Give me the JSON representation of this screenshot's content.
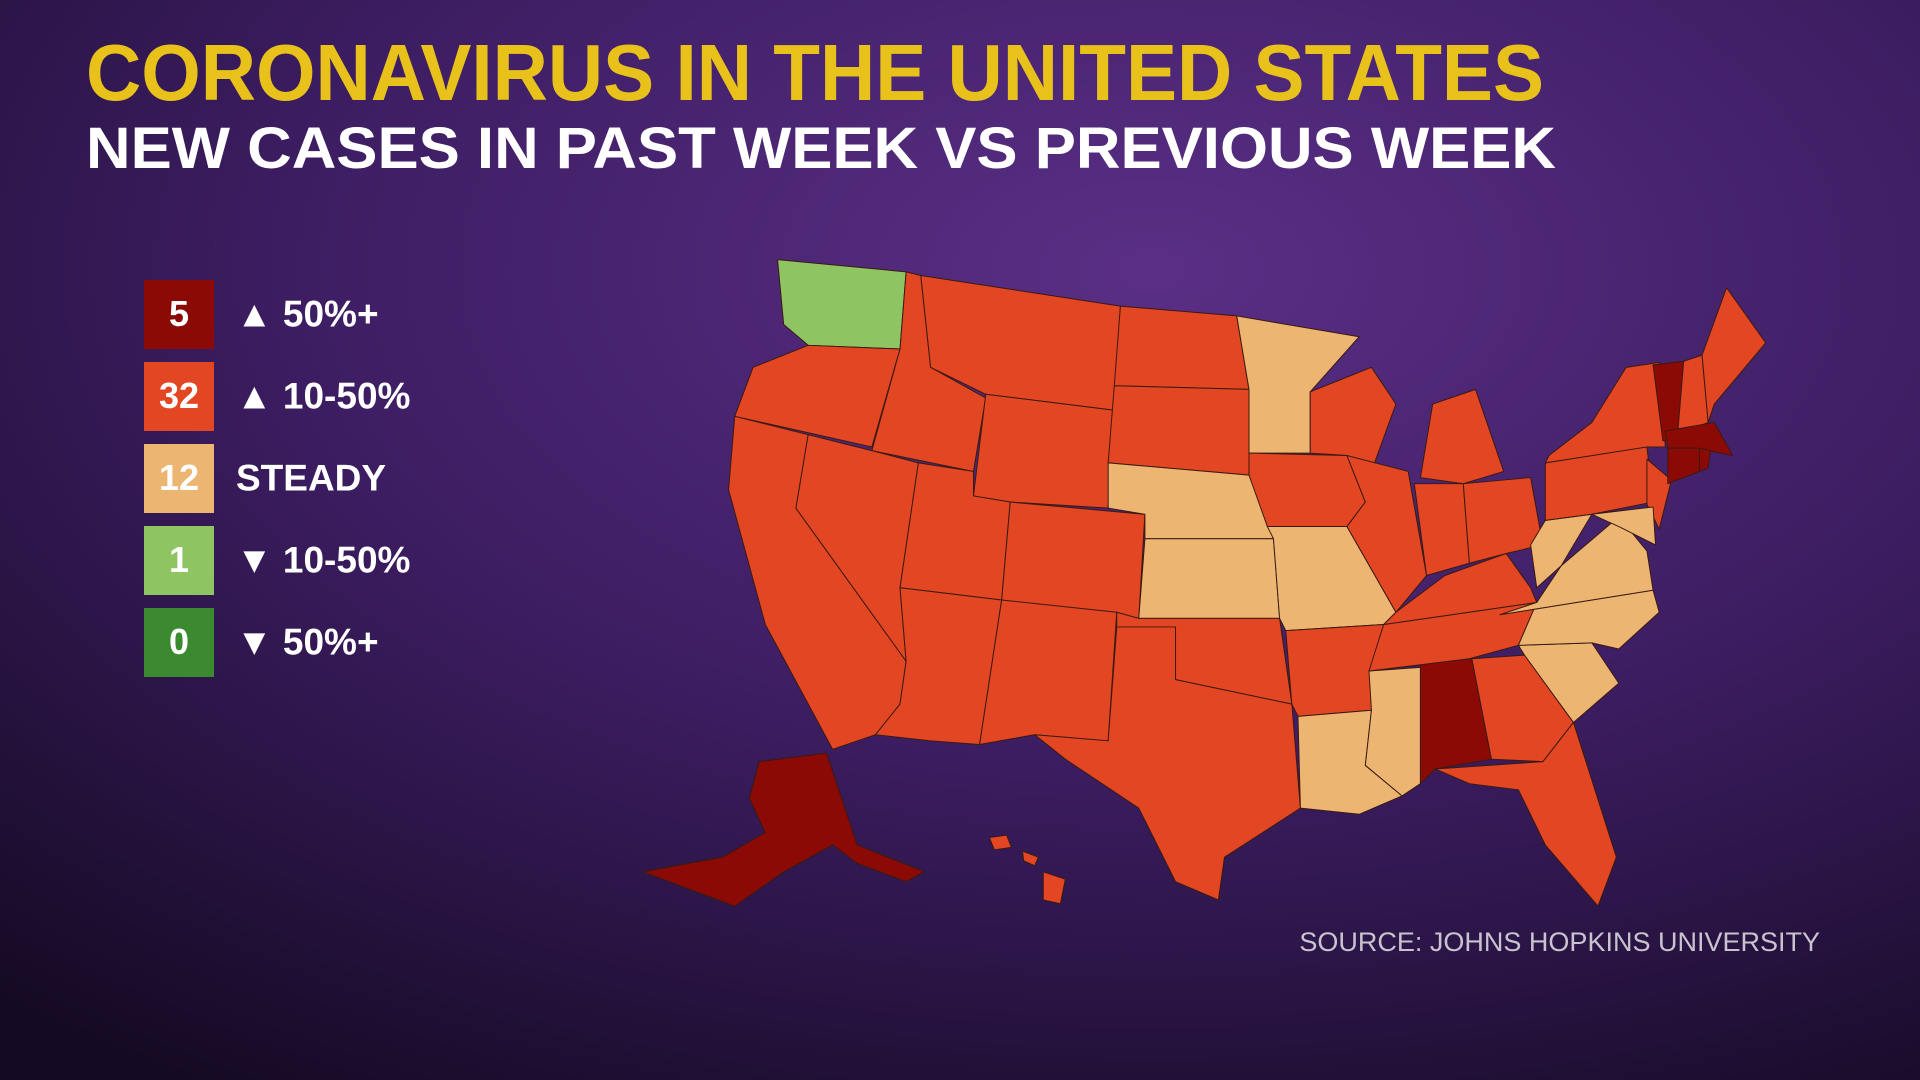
{
  "header": {
    "title": "CORONAVIRUS IN THE UNITED STATES",
    "subtitle": "NEW CASES IN PAST WEEK VS PREVIOUS WEEK"
  },
  "legend": {
    "items": [
      {
        "count": 5,
        "label": "▲ 50%+",
        "color": "#8b0a05"
      },
      {
        "count": 32,
        "label": "▲ 10-50%",
        "color": "#e24622"
      },
      {
        "count": 12,
        "label": "STEADY",
        "color": "#edb572"
      },
      {
        "count": 1,
        "label": "▼ 10-50%",
        "color": "#8fc462"
      },
      {
        "count": 0,
        "label": "▼ 50%+",
        "color": "#3b8a2f"
      }
    ]
  },
  "source": "SOURCE: JOHNS HOPKINS UNIVERSITY"
}
